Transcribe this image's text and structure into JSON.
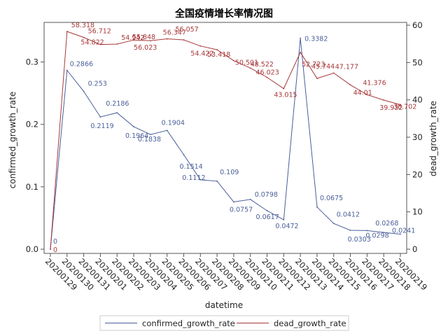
{
  "chart_data": {
    "type": "line",
    "title": "全国疫情增长率情况图",
    "xlabel": "datetime",
    "ylabel_left": "confirmed_growth_rate",
    "ylabel_right": "dead_growth_rate",
    "categories": [
      "20200129",
      "20200130",
      "20200131",
      "20200201",
      "20200202",
      "20200203",
      "20200204",
      "20200205",
      "20200206",
      "20200207",
      "20200208",
      "20200209",
      "20200210",
      "20200211",
      "20200212",
      "20200213",
      "20200214",
      "20200215",
      "20200216",
      "20200217",
      "20200218",
      "20200219"
    ],
    "ylim_left": [
      0,
      0.35
    ],
    "ylim_right": [
      0,
      60
    ],
    "yticks_left": [
      "0.0",
      "0.1",
      "0.2",
      "0.3"
    ],
    "yticks_right": [
      "0",
      "10",
      "20",
      "30",
      "40",
      "50",
      "60"
    ],
    "grid": false,
    "legend_position": "bottom-center",
    "series": [
      {
        "name": "confirmed_growth_rate",
        "axis": "left",
        "color": "#4a5f9a",
        "values": [
          0,
          0.2866,
          0.253,
          0.2119,
          0.2186,
          0.1964,
          0.1838,
          0.1904,
          0.1514,
          0.1112,
          0.109,
          0.0757,
          0.0798,
          0.0617,
          0.0472,
          0.3382,
          0.0675,
          0.0412,
          0.0303,
          0.0298,
          0.0268,
          0.0241
        ],
        "labels": [
          "0",
          "0.2866",
          "0.253",
          "0.2119",
          "0.2186",
          "0.1964",
          "0.1838",
          "0.1904",
          "0.1514",
          "0.1112",
          "0.109",
          "0.0757",
          "0.0798",
          "0.0617",
          "0.0472",
          "0.3382",
          "0.0675",
          "0.0412",
          "0.0303",
          "0.0298",
          "0.0268",
          "0.0241"
        ]
      },
      {
        "name": "dead_growth_rate",
        "axis": "right",
        "color": "#a8383a",
        "values": [
          0,
          58.318,
          56.712,
          54.822,
          54.942,
          56.023,
          55.848,
          56.347,
          56.057,
          54.422,
          53.418,
          50.501,
          48.522,
          46.023,
          43.015,
          52.723,
          45.744,
          47.177,
          44.01,
          41.376,
          39.932,
          38.702
        ],
        "labels": [
          "0",
          "58.318",
          "56.712",
          "54.822",
          "54.942",
          "56.023",
          "55.848",
          "56.347",
          "56.057",
          "54.422",
          "53.418",
          "50.501",
          "48.522",
          "46.023",
          "43.015",
          "52.723",
          "45.744",
          "47.177",
          "44.01",
          "41.376",
          "39.932",
          "38.702"
        ]
      }
    ]
  }
}
